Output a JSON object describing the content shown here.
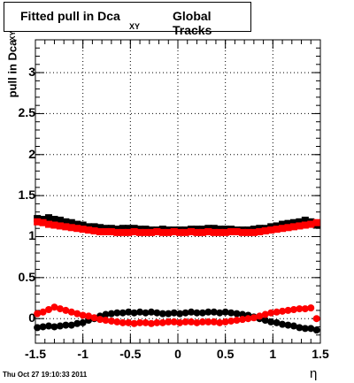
{
  "title": {
    "main": "Fitted pull in Dca",
    "subscript": "XY",
    "suffix": "Global Tracks"
  },
  "footer": "Thu Oct 27 19:10:33 2011",
  "chart_data": {
    "type": "scatter",
    "title": "Fitted pull in Dca XY  Global Tracks",
    "xlabel": "η",
    "ylabel": "pull in Dca",
    "ylabel_subscript": "XY",
    "xlim": [
      -1.5,
      1.5
    ],
    "ylim": [
      -0.3,
      3.4
    ],
    "grid": true,
    "x_ticks": [
      "-1.5",
      "-1",
      "-0.5",
      "0",
      "0.5",
      "1",
      "1.5"
    ],
    "y_ticks": [
      "0",
      "0.5",
      "1",
      "1.5",
      "2",
      "2.5",
      "3"
    ],
    "series": [
      {
        "color": "#000000",
        "marker": "square",
        "x": [
          -1.48,
          -1.42,
          -1.36,
          -1.3,
          -1.24,
          -1.18,
          -1.12,
          -1.06,
          -1.0,
          -0.94,
          -0.88,
          -0.82,
          -0.76,
          -0.7,
          -0.64,
          -0.58,
          -0.52,
          -0.46,
          -0.4,
          -0.34,
          -0.28,
          -0.22,
          -0.16,
          -0.1,
          -0.04,
          0.02,
          0.08,
          0.14,
          0.2,
          0.26,
          0.32,
          0.38,
          0.44,
          0.5,
          0.56,
          0.62,
          0.68,
          0.74,
          0.8,
          0.86,
          0.92,
          0.98,
          1.04,
          1.1,
          1.16,
          1.22,
          1.28,
          1.34,
          1.4,
          1.46
        ],
        "y": [
          1.22,
          1.21,
          1.23,
          1.21,
          1.2,
          1.18,
          1.17,
          1.15,
          1.14,
          1.12,
          1.12,
          1.11,
          1.1,
          1.1,
          1.09,
          1.1,
          1.1,
          1.1,
          1.09,
          1.09,
          1.08,
          1.08,
          1.09,
          1.08,
          1.08,
          1.08,
          1.08,
          1.09,
          1.09,
          1.09,
          1.1,
          1.1,
          1.09,
          1.09,
          1.09,
          1.08,
          1.08,
          1.08,
          1.09,
          1.1,
          1.1,
          1.12,
          1.13,
          1.15,
          1.16,
          1.17,
          1.18,
          1.2,
          1.18,
          1.14
        ]
      },
      {
        "color": "#ff0000",
        "marker": "square",
        "x": [
          -1.48,
          -1.42,
          -1.36,
          -1.3,
          -1.24,
          -1.18,
          -1.12,
          -1.06,
          -1.0,
          -0.94,
          -0.88,
          -0.82,
          -0.76,
          -0.7,
          -0.64,
          -0.58,
          -0.52,
          -0.46,
          -0.4,
          -0.34,
          -0.28,
          -0.22,
          -0.16,
          -0.1,
          -0.04,
          0.02,
          0.08,
          0.14,
          0.2,
          0.26,
          0.32,
          0.38,
          0.44,
          0.5,
          0.56,
          0.62,
          0.68,
          0.74,
          0.8,
          0.86,
          0.92,
          0.98,
          1.04,
          1.1,
          1.16,
          1.22,
          1.28,
          1.34,
          1.4,
          1.46
        ],
        "y": [
          1.18,
          1.17,
          1.15,
          1.14,
          1.13,
          1.12,
          1.11,
          1.1,
          1.09,
          1.08,
          1.07,
          1.06,
          1.06,
          1.06,
          1.05,
          1.05,
          1.05,
          1.06,
          1.05,
          1.05,
          1.05,
          1.06,
          1.05,
          1.05,
          1.06,
          1.05,
          1.05,
          1.06,
          1.05,
          1.05,
          1.06,
          1.05,
          1.05,
          1.05,
          1.06,
          1.06,
          1.05,
          1.05,
          1.05,
          1.06,
          1.07,
          1.08,
          1.09,
          1.1,
          1.11,
          1.12,
          1.13,
          1.14,
          1.15,
          1.17
        ]
      },
      {
        "color": "#000000",
        "marker": "circle",
        "x": [
          -1.48,
          -1.42,
          -1.36,
          -1.3,
          -1.24,
          -1.18,
          -1.12,
          -1.06,
          -1.0,
          -0.94,
          -0.88,
          -0.82,
          -0.76,
          -0.7,
          -0.64,
          -0.58,
          -0.52,
          -0.46,
          -0.4,
          -0.34,
          -0.28,
          -0.22,
          -0.16,
          -0.1,
          -0.04,
          0.02,
          0.08,
          0.14,
          0.2,
          0.26,
          0.32,
          0.38,
          0.44,
          0.5,
          0.56,
          0.62,
          0.68,
          0.74,
          0.8,
          0.86,
          0.92,
          0.98,
          1.04,
          1.1,
          1.16,
          1.22,
          1.28,
          1.34,
          1.4,
          1.46
        ],
        "y": [
          -0.11,
          -0.1,
          -0.09,
          -0.1,
          -0.09,
          -0.08,
          -0.08,
          -0.06,
          -0.05,
          -0.02,
          0.0,
          0.03,
          0.05,
          0.06,
          0.07,
          0.07,
          0.08,
          0.07,
          0.08,
          0.07,
          0.08,
          0.07,
          0.06,
          0.06,
          0.07,
          0.06,
          0.07,
          0.08,
          0.07,
          0.07,
          0.08,
          0.08,
          0.07,
          0.08,
          0.07,
          0.06,
          0.05,
          0.04,
          0.02,
          0.0,
          -0.02,
          -0.04,
          -0.05,
          -0.07,
          -0.08,
          -0.09,
          -0.11,
          -0.12,
          -0.12,
          -0.14
        ]
      },
      {
        "color": "#ff0000",
        "marker": "circle",
        "x": [
          -1.48,
          -1.42,
          -1.36,
          -1.3,
          -1.24,
          -1.18,
          -1.12,
          -1.06,
          -1.0,
          -0.94,
          -0.88,
          -0.82,
          -0.76,
          -0.7,
          -0.64,
          -0.58,
          -0.52,
          -0.46,
          -0.4,
          -0.34,
          -0.28,
          -0.22,
          -0.16,
          -0.1,
          -0.04,
          0.02,
          0.08,
          0.14,
          0.2,
          0.26,
          0.32,
          0.38,
          0.44,
          0.5,
          0.56,
          0.62,
          0.68,
          0.74,
          0.8,
          0.86,
          0.92,
          0.98,
          1.04,
          1.1,
          1.16,
          1.22,
          1.28,
          1.34,
          1.4,
          1.46
        ],
        "y": [
          0.06,
          0.08,
          0.11,
          0.14,
          0.12,
          0.1,
          0.08,
          0.06,
          0.04,
          0.03,
          0.01,
          -0.01,
          -0.02,
          -0.03,
          -0.04,
          -0.05,
          -0.05,
          -0.06,
          -0.05,
          -0.05,
          -0.06,
          -0.05,
          -0.05,
          -0.04,
          -0.04,
          -0.05,
          -0.04,
          -0.04,
          -0.05,
          -0.04,
          -0.04,
          -0.04,
          -0.05,
          -0.04,
          -0.03,
          -0.02,
          -0.01,
          0.0,
          0.01,
          0.03,
          0.05,
          0.07,
          0.08,
          0.09,
          0.1,
          0.11,
          0.12,
          0.12,
          0.13,
          0.0
        ]
      }
    ]
  }
}
